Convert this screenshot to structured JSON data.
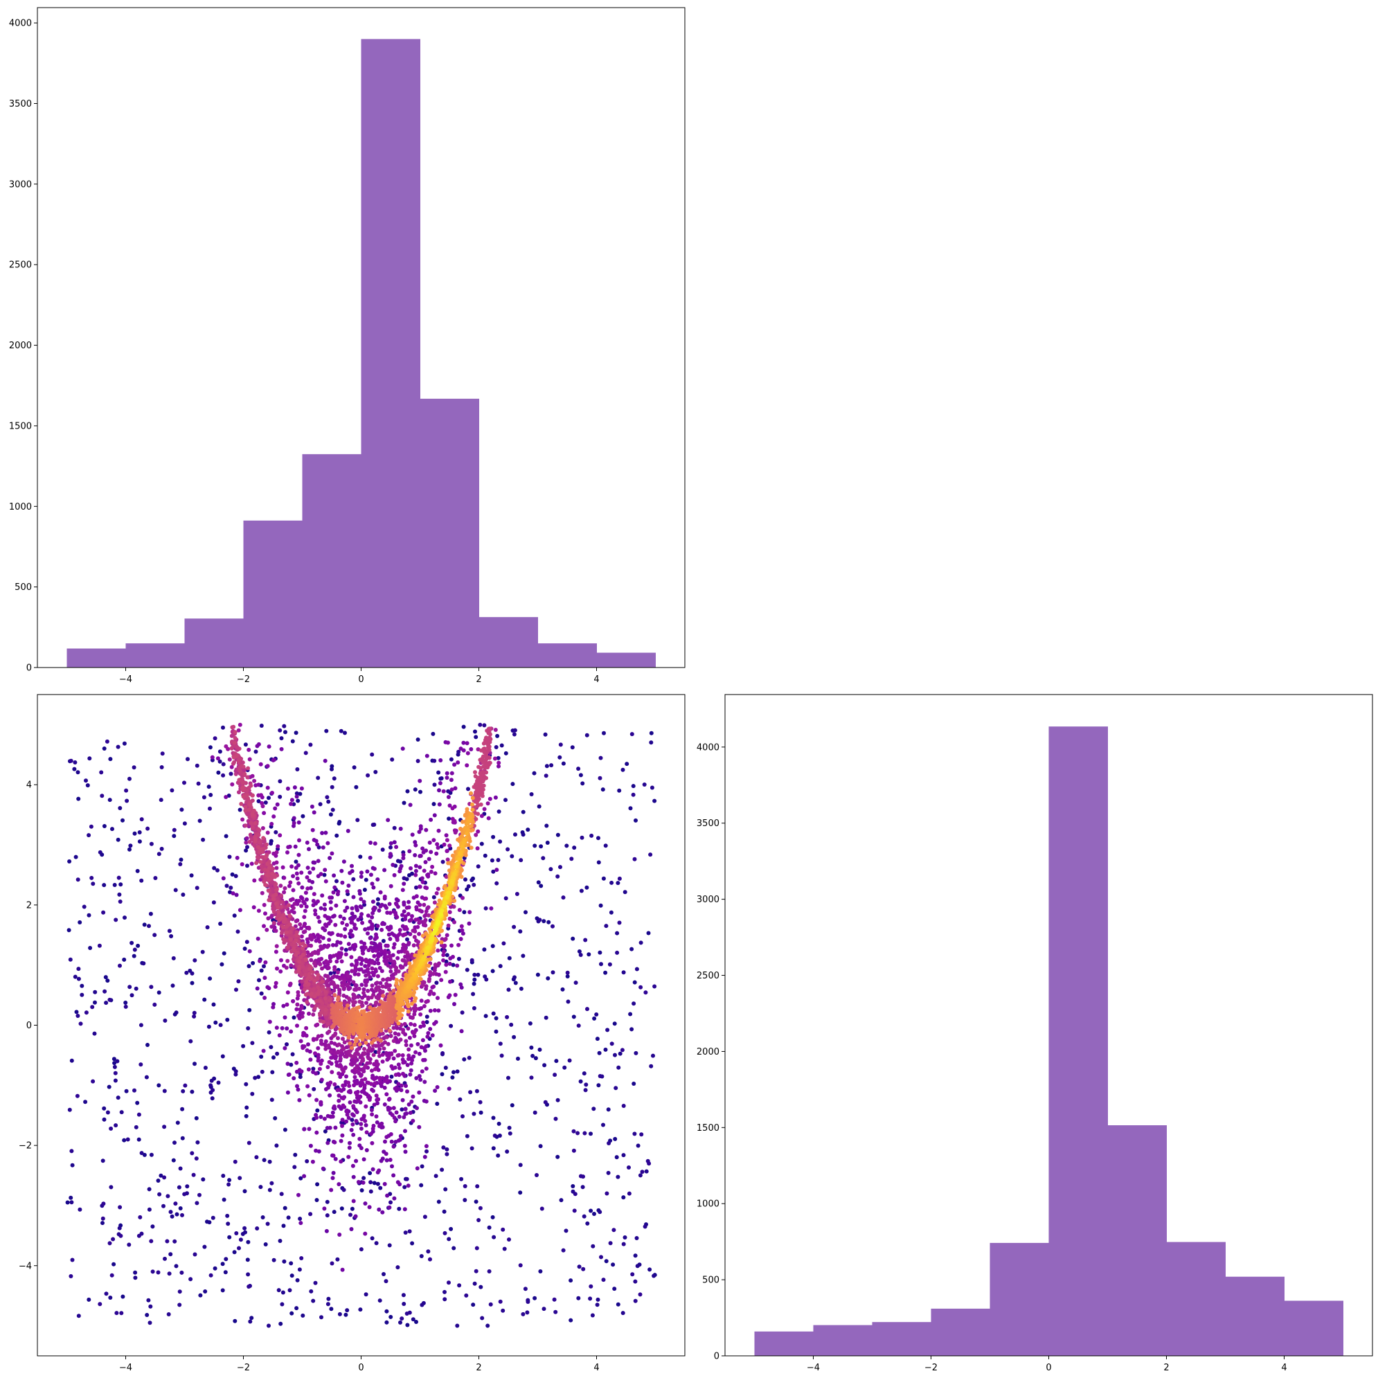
{
  "chart_data": [
    {
      "id": "hist-x",
      "type": "bar",
      "title": "",
      "xlabel": "",
      "ylabel": "",
      "bin_edges": [
        -5,
        -4,
        -3,
        -2,
        -1,
        0,
        1,
        2,
        3,
        4,
        5
      ],
      "values": [
        118,
        150,
        304,
        912,
        1324,
        3900,
        1668,
        313,
        150,
        92
      ],
      "color": "#9467bd",
      "xlim": [
        -5.5,
        5.5
      ],
      "ylim": [
        0,
        4095
      ],
      "xticks": [
        -4,
        -2,
        0,
        2,
        4
      ],
      "xtick_labels": [
        "−4",
        "−2",
        "0",
        "2",
        "4"
      ],
      "yticks": [
        0,
        500,
        1000,
        1500,
        2000,
        2500,
        3000,
        3500,
        4000
      ],
      "ytick_labels": [
        "0",
        "500",
        "1000",
        "1500",
        "2000",
        "2500",
        "3000",
        "3500",
        "4000"
      ],
      "grid": false
    },
    {
      "id": "scatter-xy",
      "type": "scatter",
      "title": "",
      "xlabel": "",
      "ylabel": "",
      "description_of_points": "about 10000 points; uniform background over [-5,5]x[-5,5], a scatter cloud around y = x^2, and a dense ridge along y = x^2 for x in [-2.2, 2.2]; points colored by density using the plasma colormap",
      "colormap": [
        "#0d0887",
        "#5402a3",
        "#8b0aa5",
        "#b83289",
        "#db5c68",
        "#f48849",
        "#febd2a",
        "#f0f921"
      ],
      "xlim": [
        -5.5,
        5.5
      ],
      "ylim": [
        -5.5,
        5.5
      ],
      "xticks": [
        -4,
        -2,
        0,
        2,
        4
      ],
      "xtick_labels": [
        "−4",
        "−2",
        "0",
        "2",
        "4"
      ],
      "yticks": [
        -4,
        -2,
        0,
        2,
        4
      ],
      "ytick_labels": [
        "−4",
        "−2",
        "0",
        "2",
        "4"
      ],
      "grid": false
    },
    {
      "id": "hist-y",
      "type": "bar",
      "title": "",
      "xlabel": "",
      "ylabel": "",
      "bin_edges": [
        -5,
        -4,
        -3,
        -2,
        -1,
        0,
        1,
        2,
        3,
        4,
        5
      ],
      "values": [
        160,
        202,
        222,
        310,
        742,
        4135,
        1515,
        748,
        520,
        362
      ],
      "color": "#9467bd",
      "xlim": [
        -5.5,
        5.5
      ],
      "ylim": [
        0,
        4345
      ],
      "xticks": [
        -4,
        -2,
        0,
        2,
        4
      ],
      "xtick_labels": [
        "−4",
        "−2",
        "0",
        "2",
        "4"
      ],
      "yticks": [
        0,
        500,
        1000,
        1500,
        2000,
        2500,
        3000,
        3500,
        4000
      ],
      "ytick_labels": [
        "0",
        "500",
        "1000",
        "1500",
        "2000",
        "2500",
        "3000",
        "3500",
        "4000"
      ],
      "grid": false
    }
  ]
}
